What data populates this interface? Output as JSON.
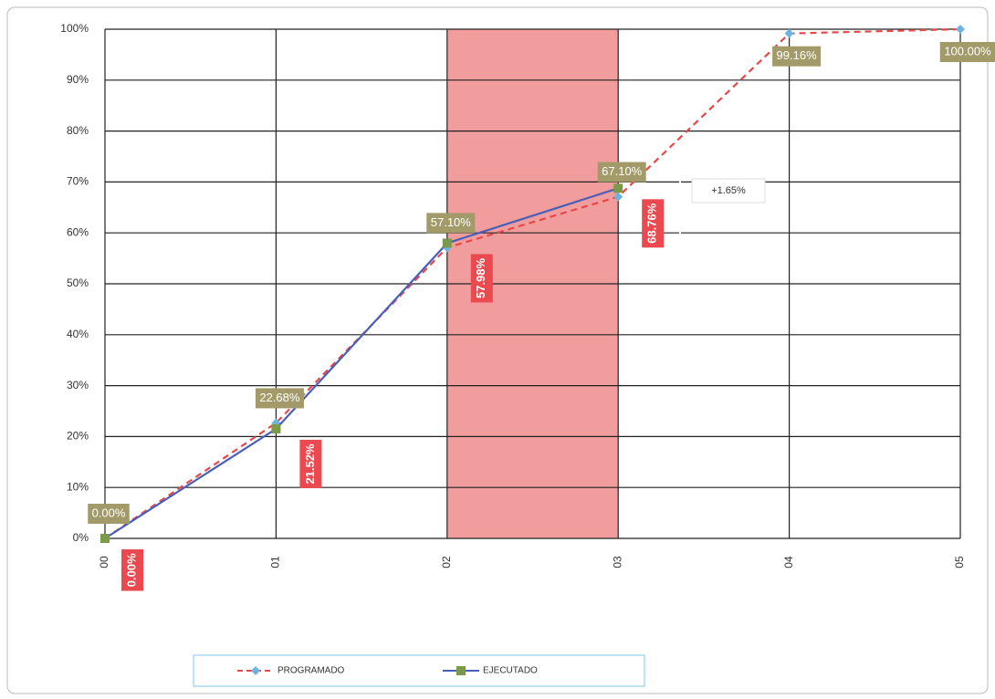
{
  "chart_data": {
    "type": "line",
    "categories": [
      "00",
      "01",
      "02",
      "03",
      "04",
      "05"
    ],
    "series": [
      {
        "name": "PROGRAMADO",
        "color": "#e8474a",
        "marker_color": "#6fb3e0",
        "dashed": true,
        "values": [
          0,
          22.68,
          57.1,
          67.1,
          99.16,
          100
        ],
        "value_labels": [
          "0.00%",
          "22.68%",
          "57.10%",
          "67.10%",
          "99.16%",
          "100.00%"
        ]
      },
      {
        "name": "EJECUTADO",
        "color": "#4a5fb8",
        "marker_color": "#7a9a4a",
        "dashed": false,
        "values": [
          0,
          21.52,
          57.98,
          68.76,
          null,
          null
        ],
        "value_labels": [
          "0.00%",
          "21.52%",
          "57.98%",
          "68.76%",
          null,
          null
        ]
      }
    ],
    "annotation": "+1.65%",
    "ylim": [
      0,
      100
    ],
    "yticks": [
      {
        "value": 0,
        "label": "0%"
      },
      {
        "value": 10,
        "label": "10%"
      },
      {
        "value": 20,
        "label": "20%"
      },
      {
        "value": 30,
        "label": "30%"
      },
      {
        "value": 40,
        "label": "40%"
      },
      {
        "value": 50,
        "label": "50%"
      },
      {
        "value": 60,
        "label": "60%"
      },
      {
        "value": 70,
        "label": "70%"
      },
      {
        "value": 80,
        "label": "80%"
      },
      {
        "value": 90,
        "label": "90%"
      },
      {
        "value": 100,
        "label": "100%"
      }
    ],
    "grid": true
  }
}
